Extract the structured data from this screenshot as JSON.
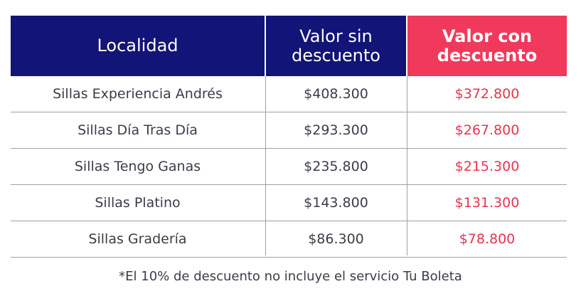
{
  "colors": {
    "header_navy": "#121477",
    "header_red": "#f1395b",
    "text_dark": "#3b3c4a",
    "text_red": "#e8344f",
    "grid": "#9fa0a8"
  },
  "table": {
    "headers": {
      "locality": "Localidad",
      "price_without_discount": "Valor sin descuento",
      "price_with_discount": "Valor con descuento"
    },
    "rows": [
      {
        "locality": "Sillas Experiencia Andrés",
        "without": "$408.300",
        "with": "$372.800"
      },
      {
        "locality": "Sillas Día Tras Día",
        "without": "$293.300",
        "with": "$267.800"
      },
      {
        "locality": "Sillas Tengo Ganas",
        "without": "$235.800",
        "with": "$215.300"
      },
      {
        "locality": "Sillas Platino",
        "without": "$143.800",
        "with": "$131.300"
      },
      {
        "locality": "Sillas Gradería",
        "without": "$86.300",
        "with": "$78.800"
      }
    ]
  },
  "footnote": "*El 10% de descuento no incluye el servicio Tu Boleta"
}
